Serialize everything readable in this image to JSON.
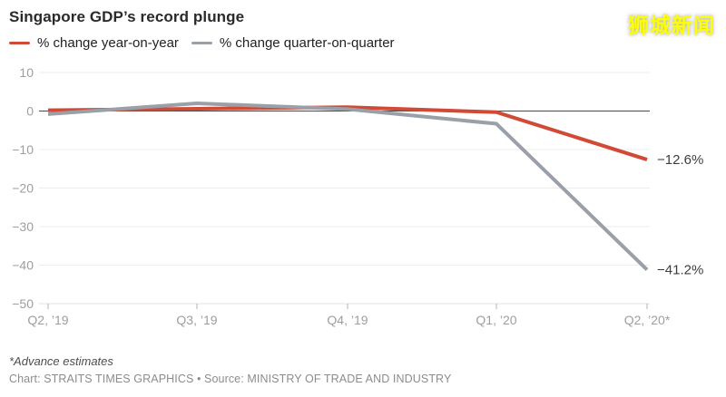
{
  "header": {
    "title": "Singapore GDP’s record plunge",
    "watermark": "狮城新闻"
  },
  "legend": [
    {
      "label": "% change year-on-year",
      "color": "#d04a36"
    },
    {
      "label": "% change quarter-on-quarter",
      "color": "#9aa0a8"
    }
  ],
  "chart_data": {
    "type": "line",
    "categories": [
      "Q2, ’19",
      "Q3, ’19",
      "Q4, ’19",
      "Q1, ’20",
      "Q2, ’20*"
    ],
    "series": [
      {
        "name": "% change year-on-year",
        "color": "#d04a36",
        "values": [
          0.2,
          0.6,
          1.0,
          -0.3,
          -12.6
        ],
        "end_label": "−12.6%"
      },
      {
        "name": "% change quarter-on-quarter",
        "color": "#9aa0a8",
        "values": [
          -0.8,
          2.0,
          0.5,
          -3.3,
          -41.2
        ],
        "end_label": "−41.2%"
      }
    ],
    "yticks": [
      10,
      0,
      -10,
      -20,
      -30,
      -40,
      -50
    ],
    "ylim": [
      -50,
      10
    ],
    "grid": true,
    "legend_position": "top",
    "colors": {
      "gridline": "#ececec",
      "zero_line": "#4a4a4a",
      "baseline": "#e0e0e0",
      "axis_tick": "#b3b3b3",
      "tick_label": "#9e9e9e",
      "end_label": "#3d3d3d"
    }
  },
  "footer": {
    "footnote": "*Advance estimates",
    "credit": "Chart: STRAITS TIMES GRAPHICS • Source: MINISTRY OF TRADE AND INDUSTRY"
  }
}
